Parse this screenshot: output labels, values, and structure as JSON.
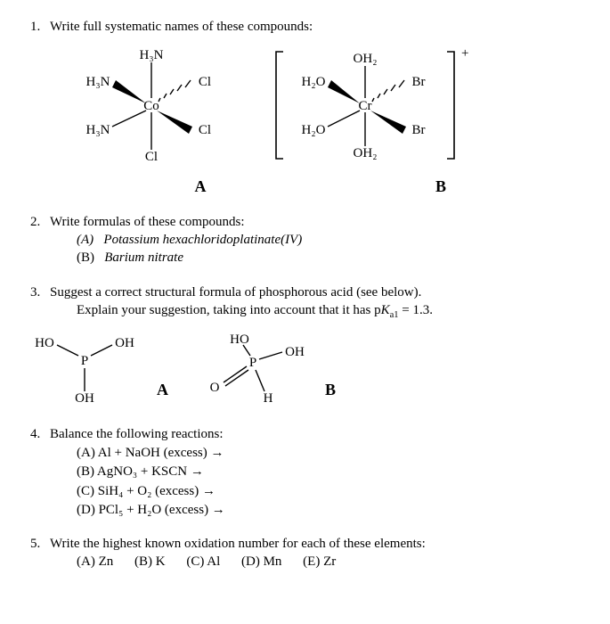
{
  "q1": {
    "num": "1.",
    "text": "Write full systematic names of these compounds:",
    "labelA": "A",
    "labelB": "B",
    "complexA": {
      "center": "Co",
      "ligand_top": "H₃N",
      "ligand_left_up": "H₃N",
      "ligand_left_down": "H₃N",
      "ligand_right_up": "Cl",
      "ligand_right_down": "Cl",
      "ligand_bottom": "Cl"
    },
    "complexB": {
      "center": "Cr",
      "ligand_top": "OH₂",
      "ligand_left_up": "H₂O",
      "ligand_left_down": "H₂O",
      "ligand_right_up": "Br",
      "ligand_right_down": "Br",
      "ligand_bottom": "OH₂",
      "charge": "+"
    }
  },
  "q2": {
    "num": "2.",
    "text": "Write formulas of these compounds:",
    "a_label": "(A)",
    "a_text": "Potassium hexachloridoplatinate(IV)",
    "b_label": "(B)",
    "b_text": "Barium nitrate"
  },
  "q3": {
    "num": "3.",
    "text1": "Suggest a correct structural formula of phosphorous acid (see below).",
    "text2_pre": "Explain your suggestion, taking into account that it has p",
    "text2_k": "K",
    "text2_sub": "a1",
    "text2_post": " = 1.3.",
    "labelA": "A",
    "labelB": "B",
    "structA": {
      "p": "P",
      "oh1": "HO",
      "oh2": "OH",
      "oh3": "OH"
    },
    "structB": {
      "p": "P",
      "oh1": "HO",
      "oh2": "OH",
      "h": "H",
      "o": "O"
    }
  },
  "q4": {
    "num": "4.",
    "text": "Balance the following reactions:",
    "a": "(A) Al + NaOH (excess) →",
    "b": "(B) AgNO₃ + KSCN →",
    "c": "(C) SiH₄ + O₂ (excess) →",
    "d": "(D) PCl₅ + H₂O (excess) →"
  },
  "q5": {
    "num": "5.",
    "text": "Write the highest known oxidation number for each of these elements:",
    "a": "(A) Zn",
    "b": "(B) K",
    "c": "(C) Al",
    "d": "(D) Mn",
    "e": "(E) Zr"
  }
}
